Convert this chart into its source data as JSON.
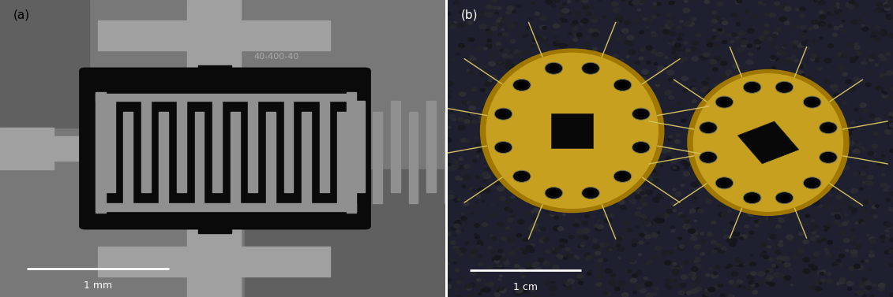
{
  "fig_width": 11.31,
  "fig_height": 3.77,
  "dpi": 100,
  "panel_a_label": "(a)",
  "panel_b_label": "(b)",
  "label_fontsize": 11,
  "scalebar_a_text": "1 mm",
  "scalebar_b_text": "1 cm",
  "annotation_text": "40-400-40",
  "annotation_color": "#aaaaaa",
  "bg_gray": "#787878",
  "bg_gray_light": "#a0a0a0",
  "bg_gray_dark": "#606060",
  "scalebar_color": "#ffffff",
  "gold_color": "#c8a020",
  "gold_edge_color": "#a07800",
  "gold_inner_color": "#b89018",
  "pin_color": "#d4c060",
  "hole_bg_color": "#111111",
  "hole_ring_color": "#555555",
  "chip_color": "#101010",
  "dark_bg": "#1a1c22"
}
